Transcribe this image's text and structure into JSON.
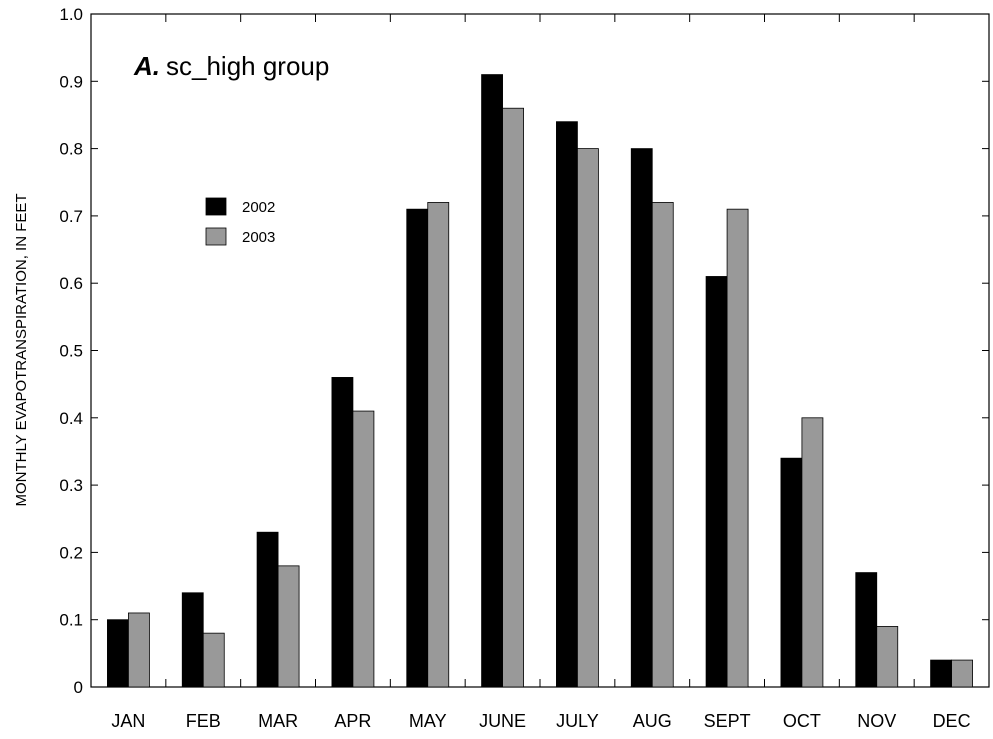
{
  "chart_data": {
    "type": "bar",
    "panel_letter": "A.",
    "title": "sc_high group",
    "xlabel": "",
    "ylabel": "MONTHLY EVAPOTRANSPIRATION, IN FEET",
    "ylim": [
      0,
      1.0
    ],
    "yticks": [
      "0",
      "0.1",
      "0.2",
      "0.3",
      "0.4",
      "0.5",
      "0.6",
      "0.7",
      "0.8",
      "0.9",
      "1.0"
    ],
    "categories": [
      "JAN",
      "FEB",
      "MAR",
      "APR",
      "MAY",
      "JUNE",
      "JULY",
      "AUG",
      "SEPT",
      "OCT",
      "NOV",
      "DEC"
    ],
    "series": [
      {
        "name": "2002",
        "color": "#000000",
        "values": [
          0.1,
          0.14,
          0.23,
          0.46,
          0.71,
          0.91,
          0.84,
          0.8,
          0.61,
          0.34,
          0.17,
          0.04
        ]
      },
      {
        "name": "2003",
        "color": "#999999",
        "values": [
          0.11,
          0.08,
          0.18,
          0.41,
          0.72,
          0.86,
          0.8,
          0.72,
          0.71,
          0.4,
          0.09,
          0.04
        ]
      }
    ],
    "legend_position": "top-left",
    "grid": false
  }
}
